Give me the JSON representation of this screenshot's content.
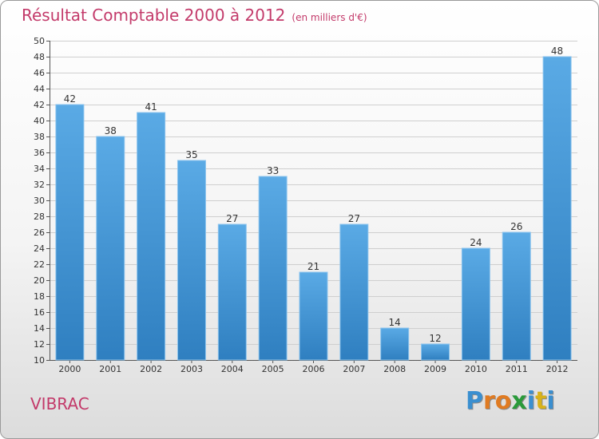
{
  "chart_data": {
    "type": "bar",
    "title": "Résultat Comptable 2000 à 2012",
    "subtitle": "(en milliers d'€)",
    "categories": [
      "2000",
      "2001",
      "2002",
      "2003",
      "2004",
      "2005",
      "2006",
      "2007",
      "2008",
      "2009",
      "2010",
      "2011",
      "2012"
    ],
    "values": [
      42,
      38,
      41,
      35,
      27,
      33,
      21,
      27,
      14,
      12,
      24,
      26,
      48
    ],
    "ylim": [
      10,
      50
    ],
    "yticks": [
      10,
      12,
      14,
      16,
      18,
      20,
      22,
      24,
      26,
      28,
      30,
      32,
      34,
      36,
      38,
      40,
      42,
      44,
      46,
      48,
      50
    ],
    "grid": true,
    "bar_color": "#4da0dc"
  },
  "location": "VIBRAC",
  "brand": {
    "letters": [
      "P",
      "r",
      "o",
      "x",
      "i",
      "t",
      "i"
    ],
    "colors": [
      "#3a8fd0",
      "#e07b22",
      "#e07b22",
      "#2a9a3a",
      "#3a8fd0",
      "#d8b21a",
      "#3a8fd0"
    ]
  }
}
